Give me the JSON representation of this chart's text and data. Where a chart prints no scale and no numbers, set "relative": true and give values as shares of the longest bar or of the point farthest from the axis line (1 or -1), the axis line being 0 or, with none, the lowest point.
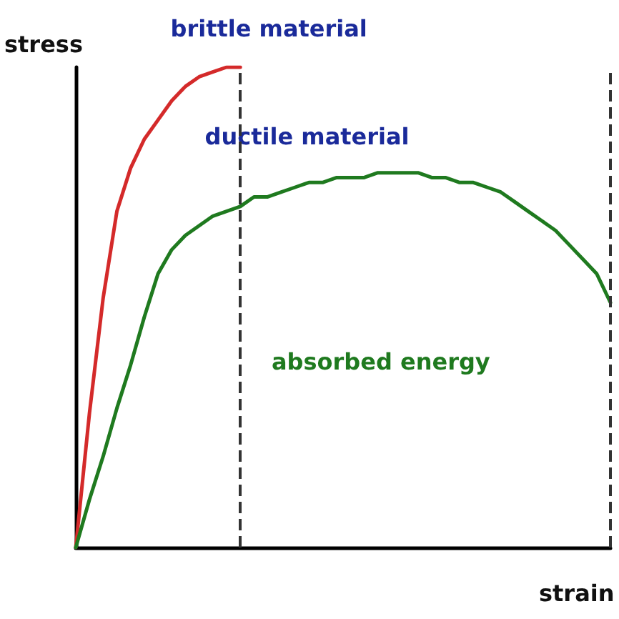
{
  "chart_data": {
    "type": "line",
    "relative": true,
    "xlabel": "strain",
    "ylabel": "stress",
    "categories": [
      null,
      null,
      null,
      null,
      null,
      null,
      null,
      null,
      null,
      null,
      null,
      null,
      null,
      null,
      null,
      null,
      null,
      null,
      null,
      null,
      null,
      null,
      null,
      null,
      null,
      null,
      null,
      null,
      null,
      null,
      null,
      null,
      null,
      null,
      null,
      null,
      null,
      null,
      null,
      null
    ],
    "series": [
      {
        "name": "brittle material",
        "color": "#d42a2a",
        "values": [
          0,
          0.28,
          0.52,
          0.7,
          0.79,
          0.85,
          0.89,
          0.93,
          0.96,
          0.98,
          0.99,
          1,
          1,
          null,
          null,
          null,
          null,
          null,
          null,
          null,
          null,
          null,
          null,
          null,
          null,
          null,
          null,
          null,
          null,
          null,
          null,
          null,
          null,
          null,
          null,
          null,
          null,
          null,
          null,
          null
        ]
      },
      {
        "name": "ductile material",
        "color": "#1f7a1f",
        "values": [
          0,
          0.1,
          0.19,
          0.29,
          0.38,
          0.48,
          0.57,
          0.62,
          0.65,
          0.67,
          0.69,
          0.7,
          0.71,
          0.73,
          0.73,
          0.74,
          0.75,
          0.76,
          0.76,
          0.77,
          0.77,
          0.77,
          0.78,
          0.78,
          0.78,
          0.78,
          0.77,
          0.77,
          0.76,
          0.76,
          0.75,
          0.74,
          0.72,
          0.7,
          0.68,
          0.66,
          0.63,
          0.6,
          0.57,
          0.51
        ]
      }
    ],
    "annotations": [
      "absorbed energy"
    ],
    "legend": false,
    "grid": false,
    "marker": "none",
    "line_style": "solid"
  }
}
